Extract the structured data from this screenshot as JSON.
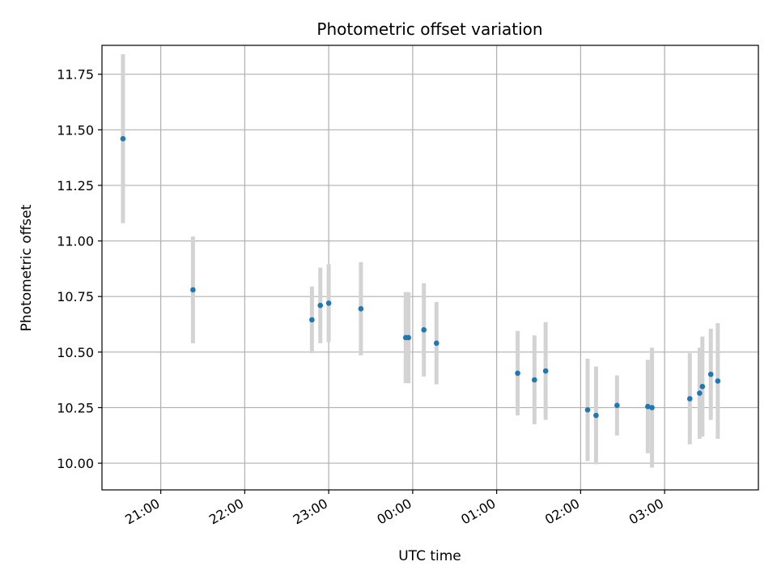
{
  "chart_data": {
    "type": "scatter",
    "title": "Photometric offset variation",
    "xlabel": "UTC time",
    "ylabel": "Photometric offset",
    "x_ticks": [
      "21:00",
      "22:00",
      "23:00",
      "00:00",
      "01:00",
      "02:00",
      "03:00"
    ],
    "y_ticks": [
      "10.00",
      "10.25",
      "10.50",
      "10.75",
      "11.00",
      "11.25",
      "11.50",
      "11.75"
    ],
    "x_range": [
      "20:18",
      "04:07"
    ],
    "ylim": [
      9.88,
      11.88
    ],
    "grid": true,
    "colors": {
      "point": "#1f77b4",
      "errorbar": "#d3d3d3",
      "grid": "#b0b0b0"
    },
    "points": [
      {
        "x": "20:33",
        "y": 11.46,
        "err": 0.38
      },
      {
        "x": "21:23",
        "y": 10.78,
        "err": 0.24
      },
      {
        "x": "22:48",
        "y": 10.645,
        "err": 0.15
      },
      {
        "x": "22:54",
        "y": 10.71,
        "err": 0.17
      },
      {
        "x": "23:00",
        "y": 10.72,
        "err": 0.175
      },
      {
        "x": "23:23",
        "y": 10.695,
        "err": 0.21
      },
      {
        "x": "23:55",
        "y": 10.565,
        "err": 0.205
      },
      {
        "x": "23:57",
        "y": 10.565,
        "err": 0.205
      },
      {
        "x": "00:08",
        "y": 10.6,
        "err": 0.21
      },
      {
        "x": "00:17",
        "y": 10.54,
        "err": 0.185
      },
      {
        "x": "01:15",
        "y": 10.405,
        "err": 0.19
      },
      {
        "x": "01:27",
        "y": 10.375,
        "err": 0.2
      },
      {
        "x": "01:35",
        "y": 10.415,
        "err": 0.22
      },
      {
        "x": "02:05",
        "y": 10.24,
        "err": 0.23
      },
      {
        "x": "02:11",
        "y": 10.215,
        "err": 0.22
      },
      {
        "x": "02:26",
        "y": 10.26,
        "err": 0.135
      },
      {
        "x": "02:48",
        "y": 10.255,
        "err": 0.21
      },
      {
        "x": "02:51",
        "y": 10.25,
        "err": 0.27
      },
      {
        "x": "03:18",
        "y": 10.29,
        "err": 0.205
      },
      {
        "x": "03:25",
        "y": 10.315,
        "err": 0.205
      },
      {
        "x": "03:27",
        "y": 10.345,
        "err": 0.225
      },
      {
        "x": "03:33",
        "y": 10.4,
        "err": 0.205
      },
      {
        "x": "03:38",
        "y": 10.37,
        "err": 0.26
      }
    ]
  }
}
